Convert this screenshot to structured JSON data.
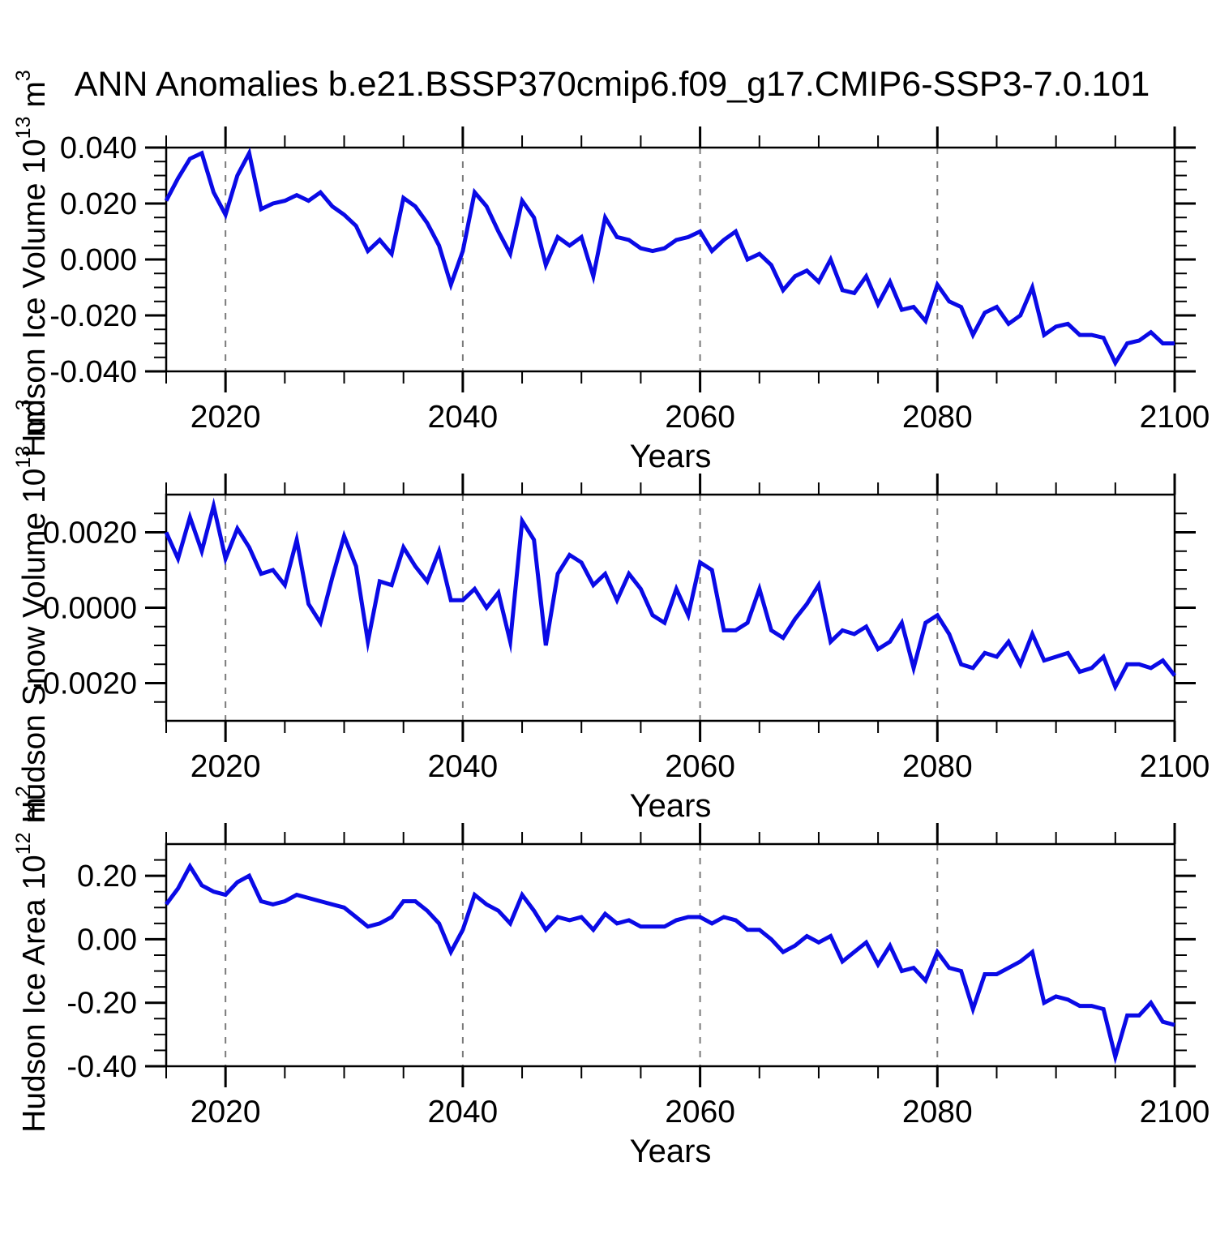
{
  "title": "ANN Anomalies b.e21.BSSP370cmip6.f09_g17.CMIP6-SSP3-7.0.101",
  "line_color": "#0a0ae6",
  "grid_color": "#7a7a7a",
  "axis_color": "#000000",
  "chart_data": {
    "type": "line",
    "title": "ANN Anomalies b.e21.BSSP370cmip6.f09_g17.CMIP6-SSP3-7.0.101",
    "x_label": "Years",
    "xlim": [
      2015,
      2100
    ],
    "x_tick_values": [
      2020,
      2040,
      2060,
      2080,
      2100
    ],
    "x_tick_labels": [
      "2020",
      "2040",
      "2060",
      "2080",
      "2100"
    ],
    "x_minor_step": 5,
    "grid_years": [
      2020,
      2040,
      2060,
      2080
    ],
    "grid_style": "dashed",
    "legend": "none",
    "years": [
      2015,
      2016,
      2017,
      2018,
      2019,
      2020,
      2021,
      2022,
      2023,
      2024,
      2025,
      2026,
      2027,
      2028,
      2029,
      2030,
      2031,
      2032,
      2033,
      2034,
      2035,
      2036,
      2037,
      2038,
      2039,
      2040,
      2041,
      2042,
      2043,
      2044,
      2045,
      2046,
      2047,
      2048,
      2049,
      2050,
      2051,
      2052,
      2053,
      2054,
      2055,
      2056,
      2057,
      2058,
      2059,
      2060,
      2061,
      2062,
      2063,
      2064,
      2065,
      2066,
      2067,
      2068,
      2069,
      2070,
      2071,
      2072,
      2073,
      2074,
      2075,
      2076,
      2077,
      2078,
      2079,
      2080,
      2081,
      2082,
      2083,
      2084,
      2085,
      2086,
      2087,
      2088,
      2089,
      2090,
      2091,
      2092,
      2093,
      2094,
      2095,
      2096,
      2097,
      2098,
      2099,
      2100
    ],
    "panels": [
      {
        "id": "ice-volume",
        "name": "Hudson Ice Volume (10^13 m^3)",
        "ylabel": {
          "text": "Hudson Ice Volume 10",
          "sup": "13",
          "unit": " m",
          "unit_sup": "3"
        },
        "ylim": [
          -0.04,
          0.04
        ],
        "y_major_step": 0.02,
        "y_minor_step": 0.005,
        "ytick_values": [
          0.04,
          0.02,
          0.0,
          -0.02,
          -0.04
        ],
        "ytick_labels": [
          "0.040",
          "0.020",
          "0.000",
          "-0.020",
          "-0.040"
        ],
        "values": [
          0.021,
          0.029,
          0.036,
          0.038,
          0.024,
          0.016,
          0.03,
          0.038,
          0.018,
          0.02,
          0.021,
          0.023,
          0.021,
          0.024,
          0.019,
          0.016,
          0.012,
          0.003,
          0.007,
          0.002,
          0.022,
          0.019,
          0.013,
          0.005,
          -0.009,
          0.003,
          0.024,
          0.019,
          0.01,
          0.002,
          0.021,
          0.015,
          -0.002,
          0.008,
          0.005,
          0.008,
          -0.006,
          0.015,
          0.008,
          0.007,
          0.004,
          0.003,
          0.004,
          0.007,
          0.008,
          0.01,
          0.003,
          0.007,
          0.01,
          0.0,
          0.002,
          -0.002,
          -0.011,
          -0.006,
          -0.004,
          -0.008,
          0.0,
          -0.011,
          -0.012,
          -0.006,
          -0.016,
          -0.008,
          -0.018,
          -0.017,
          -0.022,
          -0.009,
          -0.015,
          -0.017,
          -0.027,
          -0.019,
          -0.017,
          -0.023,
          -0.02,
          -0.01,
          -0.027,
          -0.024,
          -0.023,
          -0.027,
          -0.027,
          -0.028,
          -0.037,
          -0.03,
          -0.029,
          -0.026,
          -0.03,
          -0.03
        ]
      },
      {
        "id": "snow-volume",
        "name": "Hudson Snow Volume (10^13 m^3)",
        "ylabel": {
          "text": "Hudson Snow Volume 10",
          "sup": "13",
          "unit": " m",
          "unit_sup": "3"
        },
        "ylim": [
          -0.003,
          0.003
        ],
        "y_major_step": 0.002,
        "y_minor_step": 0.0005,
        "ytick_values": [
          0.002,
          0.0,
          -0.002
        ],
        "ytick_labels": [
          "0.0020",
          "0.0000",
          "-0.0020"
        ],
        "values": [
          0.002,
          0.0013,
          0.0024,
          0.0015,
          0.0027,
          0.0013,
          0.0021,
          0.0016,
          0.0009,
          0.001,
          0.0006,
          0.0018,
          0.0001,
          -0.0004,
          0.0008,
          0.0019,
          0.0011,
          -0.0009,
          0.0007,
          0.0006,
          0.0016,
          0.0011,
          0.0007,
          0.0015,
          0.0002,
          0.0002,
          0.0005,
          0.0,
          0.0004,
          -0.0009,
          0.0023,
          0.0018,
          -0.001,
          0.0009,
          0.0014,
          0.0012,
          0.0006,
          0.0009,
          0.0002,
          0.0009,
          0.0005,
          -0.0002,
          -0.0004,
          0.0005,
          -0.0002,
          0.0012,
          0.001,
          -0.0006,
          -0.0006,
          -0.0004,
          0.0005,
          -0.0006,
          -0.0008,
          -0.0003,
          0.0001,
          0.0006,
          -0.0009,
          -0.0006,
          -0.0007,
          -0.0005,
          -0.0011,
          -0.0009,
          -0.0004,
          -0.0016,
          -0.0004,
          -0.0002,
          -0.0007,
          -0.0015,
          -0.0016,
          -0.0012,
          -0.0013,
          -0.0009,
          -0.0015,
          -0.0007,
          -0.0014,
          -0.0013,
          -0.0012,
          -0.0017,
          -0.0016,
          -0.0013,
          -0.0021,
          -0.0015,
          -0.0015,
          -0.0016,
          -0.0014,
          -0.0018
        ]
      },
      {
        "id": "ice-area",
        "name": "Hudson Ice Area (10^12 m^2)",
        "ylabel": {
          "text": "Hudson Ice Area 10",
          "sup": "12",
          "unit": " m",
          "unit_sup": "2"
        },
        "ylim": [
          -0.4,
          0.3
        ],
        "y_major_step": 0.2,
        "y_minor_step": 0.05,
        "ytick_values": [
          0.2,
          0.0,
          -0.2,
          -0.4
        ],
        "ytick_labels": [
          "0.20",
          "0.00",
          "-0.20",
          "-0.40"
        ],
        "values": [
          0.11,
          0.16,
          0.23,
          0.17,
          0.15,
          0.14,
          0.18,
          0.2,
          0.12,
          0.11,
          0.12,
          0.14,
          0.13,
          0.12,
          0.11,
          0.1,
          0.07,
          0.04,
          0.05,
          0.07,
          0.12,
          0.12,
          0.09,
          0.05,
          -0.04,
          0.03,
          0.14,
          0.11,
          0.09,
          0.05,
          0.14,
          0.09,
          0.03,
          0.07,
          0.06,
          0.07,
          0.03,
          0.08,
          0.05,
          0.06,
          0.04,
          0.04,
          0.04,
          0.06,
          0.07,
          0.07,
          0.05,
          0.07,
          0.06,
          0.03,
          0.03,
          0.0,
          -0.04,
          -0.02,
          0.01,
          -0.01,
          0.01,
          -0.07,
          -0.04,
          -0.01,
          -0.08,
          -0.02,
          -0.1,
          -0.09,
          -0.13,
          -0.04,
          -0.09,
          -0.1,
          -0.22,
          -0.11,
          -0.11,
          -0.09,
          -0.07,
          -0.04,
          -0.2,
          -0.18,
          -0.19,
          -0.21,
          -0.21,
          -0.22,
          -0.37,
          -0.24,
          -0.24,
          -0.2,
          -0.26,
          -0.27
        ]
      }
    ]
  }
}
